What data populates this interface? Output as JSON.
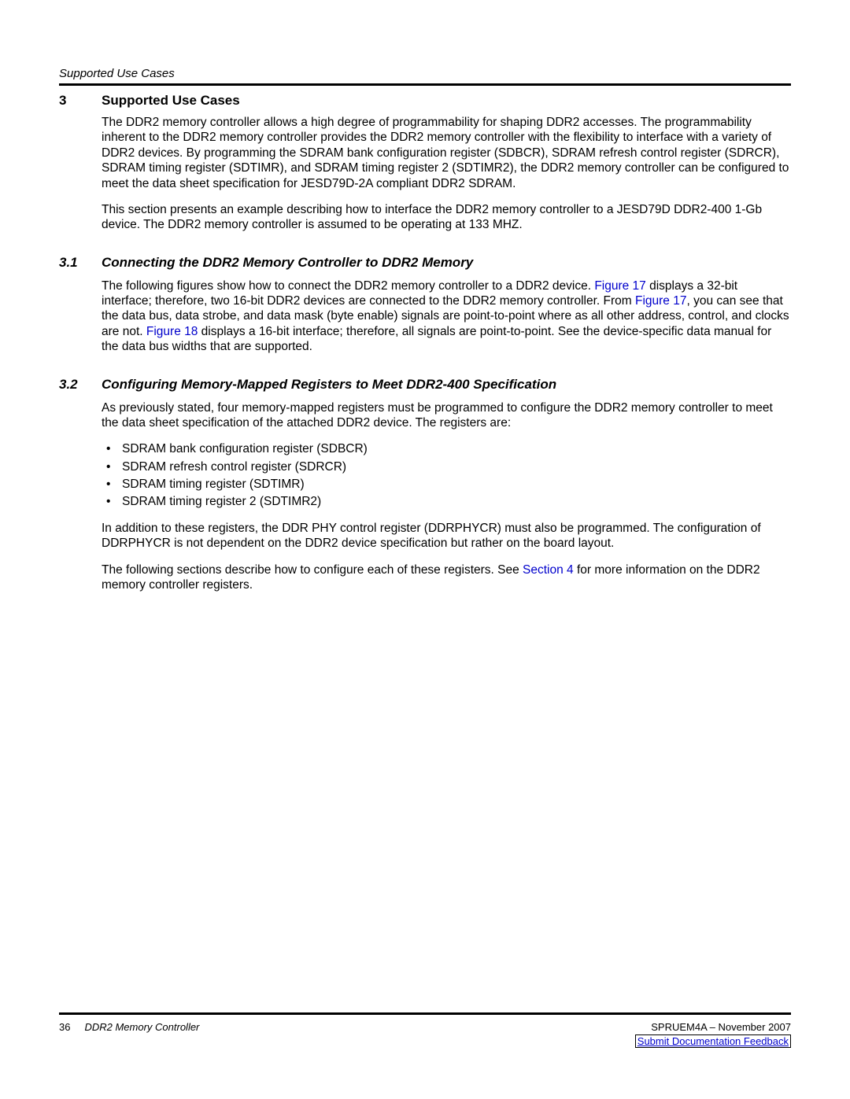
{
  "colors": {
    "text": "#000000",
    "link": "#0000cc",
    "background": "#ffffff",
    "rule": "#000000"
  },
  "typography": {
    "body_fontsize_pt": 11.5,
    "heading_fontsize_pt": 12.5,
    "footer_fontsize_pt": 10
  },
  "header": {
    "running_title": "Supported Use Cases"
  },
  "section3": {
    "number": "3",
    "title": "Supported Use Cases",
    "p1": "The DDR2 memory controller allows a high degree of programmability for shaping DDR2 accesses. The programmability inherent to the DDR2 memory controller provides the DDR2 memory controller with the flexibility to interface with a variety of DDR2 devices. By programming the SDRAM bank configuration register (SDBCR), SDRAM refresh control register (SDRCR), SDRAM timing register (SDTIMR), and SDRAM timing register 2 (SDTIMR2), the DDR2 memory controller can be configured to meet the data sheet specification for JESD79D-2A compliant DDR2 SDRAM.",
    "p2": "This section presents an example describing how to interface the DDR2 memory controller to a JESD79D DDR2-400 1-Gb device. The DDR2 memory controller is assumed to be operating at 133 MHZ."
  },
  "section31": {
    "number": "3.1",
    "title": "Connecting the DDR2 Memory Controller to DDR2 Memory",
    "p1a": "The following figures show how to connect the DDR2 memory controller to a DDR2 device. ",
    "xref1": "Figure 17",
    "p1b": " displays a 32-bit interface; therefore, two 16-bit DDR2 devices are connected to the DDR2 memory controller. From ",
    "xref2": "Figure 17",
    "p1c": ", you can see that the data bus, data strobe, and data mask (byte enable) signals are point-to-point where as all other address, control, and clocks are not. ",
    "xref3": "Figure 18",
    "p1d": " displays a 16-bit interface; therefore, all signals are point-to-point. See the device-specific data manual for the data bus widths that are supported."
  },
  "section32": {
    "number": "3.2",
    "title": "Configuring Memory-Mapped Registers to Meet DDR2-400 Specification",
    "p1": "As previously stated, four memory-mapped registers must be programmed to configure the DDR2 memory controller to meet the data sheet specification of the attached DDR2 device. The registers are:",
    "bullets": [
      "SDRAM bank configuration register (SDBCR)",
      "SDRAM refresh control register (SDRCR)",
      "SDRAM timing register (SDTIMR)",
      "SDRAM timing register 2 (SDTIMR2)"
    ],
    "p2": "In addition to these registers, the DDR PHY control register (DDRPHYCR) must also be programmed. The configuration of DDRPHYCR is not dependent on the DDR2 device specification but rather on the board layout.",
    "p3a": "The following sections describe how to configure each of these registers. See ",
    "xref1": "Section 4",
    "p3b": " for more information on the DDR2 memory controller registers."
  },
  "footer": {
    "page_number": "36",
    "doc_title": "DDR2 Memory Controller",
    "doc_id": "SPRUEM4A – November 2007",
    "feedback_link": "Submit Documentation Feedback"
  }
}
